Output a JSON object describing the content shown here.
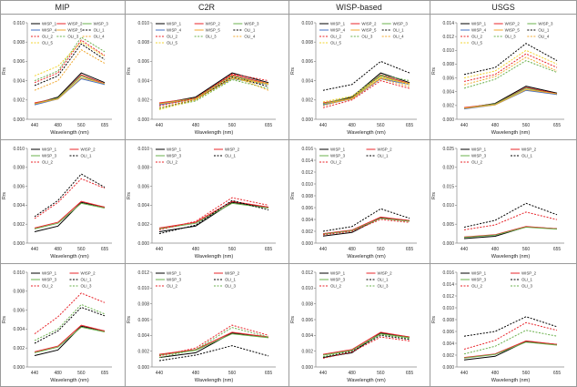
{
  "column_titles": [
    "MIP",
    "C2R",
    "WISP-based",
    "USGS"
  ],
  "colors": {
    "WISP_1": "#000000",
    "WISP_2": "#e8242a",
    "WISP_3": "#6ab04c",
    "WISP_4": "#4472c4",
    "WISP_5": "#f0a830",
    "OLI_1": "#000000",
    "OLI_2": "#e8242a",
    "OLI_3": "#6ab04c",
    "OLI_4": "#f0a830",
    "OLI_5": "#f2d430"
  },
  "chart_data": [
    {
      "type": "line",
      "row": 0,
      "col": 0,
      "xlabel": "Wavelength (nm)",
      "ylabel": "Rrs",
      "categories": [
        "440",
        "480",
        "560",
        "655"
      ],
      "ylim": [
        0,
        0.01
      ],
      "yticks": [
        "0.000",
        "0.002",
        "0.004",
        "0.006",
        "0.008",
        "0.010"
      ],
      "legend_cols": 3,
      "series": [
        {
          "name": "WISP_1",
          "values": [
            0.0016,
            0.0023,
            0.0048,
            0.0038
          ]
        },
        {
          "name": "WISP_2",
          "values": [
            0.0017,
            0.0022,
            0.0046,
            0.0037
          ]
        },
        {
          "name": "WISP_3",
          "values": [
            0.0016,
            0.0022,
            0.0045,
            0.0036
          ]
        },
        {
          "name": "WISP_4",
          "values": [
            0.0015,
            0.0021,
            0.0042,
            0.0036
          ]
        },
        {
          "name": "WISP_5",
          "values": [
            0.0016,
            0.0021,
            0.0043,
            0.0037
          ]
        },
        {
          "name": "OLI_1",
          "values": [
            0.0035,
            0.0045,
            0.0078,
            0.0062
          ]
        },
        {
          "name": "OLI_2",
          "values": [
            0.0038,
            0.0048,
            0.0082,
            0.0066
          ]
        },
        {
          "name": "OLI_3",
          "values": [
            0.004,
            0.005,
            0.0085,
            0.007
          ]
        },
        {
          "name": "OLI_4",
          "values": [
            0.003,
            0.004,
            0.0072,
            0.0058
          ]
        },
        {
          "name": "OLI_5",
          "values": [
            0.0045,
            0.0055,
            0.008,
            0.0065
          ]
        }
      ]
    },
    {
      "type": "line",
      "row": 0,
      "col": 1,
      "xlabel": "Wavelength (nm)",
      "ylabel": "Rrs",
      "categories": [
        "440",
        "480",
        "560",
        "655"
      ],
      "ylim": [
        0,
        0.01
      ],
      "yticks": [
        "0.000",
        "0.002",
        "0.004",
        "0.006",
        "0.008",
        "0.010"
      ],
      "legend_cols": 3,
      "series": [
        {
          "name": "WISP_1",
          "values": [
            0.0016,
            0.0023,
            0.0048,
            0.0038
          ]
        },
        {
          "name": "WISP_2",
          "values": [
            0.0017,
            0.0022,
            0.0046,
            0.0037
          ]
        },
        {
          "name": "WISP_3",
          "values": [
            0.0016,
            0.0022,
            0.0045,
            0.0036
          ]
        },
        {
          "name": "WISP_4",
          "values": [
            0.0015,
            0.0021,
            0.0042,
            0.0036
          ]
        },
        {
          "name": "WISP_5",
          "values": [
            0.0016,
            0.0021,
            0.0043,
            0.0037
          ]
        },
        {
          "name": "OLI_1",
          "values": [
            0.0012,
            0.002,
            0.0044,
            0.0034
          ]
        },
        {
          "name": "OLI_2",
          "values": [
            0.0014,
            0.0022,
            0.0047,
            0.004
          ]
        },
        {
          "name": "OLI_3",
          "values": [
            0.0011,
            0.0019,
            0.0041,
            0.0032
          ]
        },
        {
          "name": "OLI_4",
          "values": [
            0.0012,
            0.0021,
            0.0045,
            0.003
          ]
        },
        {
          "name": "OLI_5",
          "values": [
            0.001,
            0.002,
            0.0042,
            0.0036
          ]
        }
      ]
    },
    {
      "type": "line",
      "row": 0,
      "col": 2,
      "xlabel": "Wavelength (nm)",
      "ylabel": "Rrs",
      "categories": [
        "440",
        "480",
        "560",
        "655"
      ],
      "ylim": [
        0,
        0.01
      ],
      "yticks": [
        "0.000",
        "0.002",
        "0.004",
        "0.006",
        "0.008",
        "0.010"
      ],
      "legend_cols": 3,
      "series": [
        {
          "name": "WISP_1",
          "values": [
            0.0016,
            0.0023,
            0.0048,
            0.0038
          ]
        },
        {
          "name": "WISP_2",
          "values": [
            0.0017,
            0.0022,
            0.0046,
            0.0037
          ]
        },
        {
          "name": "WISP_3",
          "values": [
            0.0016,
            0.0022,
            0.0045,
            0.0036
          ]
        },
        {
          "name": "WISP_4",
          "values": [
            0.0015,
            0.0021,
            0.0042,
            0.0036
          ]
        },
        {
          "name": "WISP_5",
          "values": [
            0.0016,
            0.0021,
            0.0043,
            0.0037
          ]
        },
        {
          "name": "OLI_1",
          "values": [
            0.003,
            0.0036,
            0.006,
            0.0048
          ]
        },
        {
          "name": "OLI_2",
          "values": [
            0.0012,
            0.002,
            0.004,
            0.0032
          ]
        },
        {
          "name": "OLI_3",
          "values": [
            0.0016,
            0.0024,
            0.0046,
            0.004
          ]
        },
        {
          "name": "OLI_4",
          "values": [
            0.0014,
            0.0022,
            0.0042,
            0.0034
          ]
        },
        {
          "name": "OLI_5",
          "values": [
            0.0018,
            0.0024,
            0.0044,
            0.0036
          ]
        }
      ]
    },
    {
      "type": "line",
      "row": 0,
      "col": 3,
      "xlabel": "Wavelength (nm)",
      "ylabel": "Rrs",
      "categories": [
        "440",
        "480",
        "560",
        "655"
      ],
      "ylim": [
        0,
        0.014
      ],
      "yticks": [
        "0.000",
        "0.002",
        "0.004",
        "0.006",
        "0.008",
        "0.010",
        "0.012",
        "0.014"
      ],
      "legend_cols": 3,
      "series": [
        {
          "name": "WISP_1",
          "values": [
            0.0016,
            0.0023,
            0.0048,
            0.0038
          ]
        },
        {
          "name": "WISP_2",
          "values": [
            0.0017,
            0.0022,
            0.0046,
            0.0037
          ]
        },
        {
          "name": "WISP_3",
          "values": [
            0.0016,
            0.0022,
            0.0045,
            0.0036
          ]
        },
        {
          "name": "WISP_4",
          "values": [
            0.0015,
            0.0021,
            0.0042,
            0.0036
          ]
        },
        {
          "name": "WISP_5",
          "values": [
            0.0016,
            0.0021,
            0.0043,
            0.0037
          ]
        },
        {
          "name": "OLI_1",
          "values": [
            0.0065,
            0.0075,
            0.011,
            0.0085
          ]
        },
        {
          "name": "OLI_2",
          "values": [
            0.0055,
            0.0065,
            0.0095,
            0.0075
          ]
        },
        {
          "name": "OLI_3",
          "values": [
            0.0045,
            0.0058,
            0.0085,
            0.0068
          ]
        },
        {
          "name": "OLI_4",
          "values": [
            0.005,
            0.0062,
            0.009,
            0.007
          ]
        },
        {
          "name": "OLI_5",
          "values": [
            0.006,
            0.007,
            0.01,
            0.008
          ]
        }
      ]
    },
    {
      "type": "line",
      "row": 1,
      "col": 0,
      "xlabel": "Wavelength (nm)",
      "ylabel": "Rrs",
      "categories": [
        "440",
        "480",
        "560",
        "655"
      ],
      "ylim": [
        0,
        0.01
      ],
      "yticks": [
        "0.000",
        "0.002",
        "0.004",
        "0.006",
        "0.008",
        "0.010"
      ],
      "legend_cols": 2,
      "series": [
        {
          "name": "WISP_1",
          "values": [
            0.0012,
            0.0018,
            0.0043,
            0.0038
          ]
        },
        {
          "name": "WISP_2",
          "values": [
            0.0016,
            0.0022,
            0.0044,
            0.0038
          ]
        },
        {
          "name": "WISP_3",
          "values": [
            0.0015,
            0.0021,
            0.0042,
            0.0037
          ]
        },
        {
          "name": "OLI_1",
          "values": [
            0.0028,
            0.0045,
            0.0073,
            0.0059
          ]
        },
        {
          "name": "OLI_2",
          "values": [
            0.0026,
            0.0043,
            0.0068,
            0.0058
          ]
        }
      ]
    },
    {
      "type": "line",
      "row": 1,
      "col": 1,
      "xlabel": "Wavelength (nm)",
      "ylabel": "Rrs",
      "categories": [
        "440",
        "480",
        "560",
        "655"
      ],
      "ylim": [
        0,
        0.01
      ],
      "yticks": [
        "0.000",
        "0.002",
        "0.004",
        "0.006",
        "0.008",
        "0.010"
      ],
      "legend_cols": 2,
      "series": [
        {
          "name": "WISP_1",
          "values": [
            0.0012,
            0.0018,
            0.0043,
            0.0038
          ]
        },
        {
          "name": "WISP_2",
          "values": [
            0.0016,
            0.0022,
            0.0044,
            0.0038
          ]
        },
        {
          "name": "WISP_3",
          "values": [
            0.0015,
            0.0021,
            0.0042,
            0.0037
          ]
        },
        {
          "name": "OLI_1",
          "values": [
            0.001,
            0.0019,
            0.0045,
            0.0035
          ]
        },
        {
          "name": "OLI_2",
          "values": [
            0.0014,
            0.0023,
            0.0048,
            0.004
          ]
        }
      ]
    },
    {
      "type": "line",
      "row": 1,
      "col": 2,
      "xlabel": "Wavelength (nm)",
      "ylabel": "Rrs",
      "categories": [
        "440",
        "480",
        "560",
        "655"
      ],
      "ylim": [
        0,
        0.016
      ],
      "yticks": [
        "0.000",
        "0.002",
        "0.004",
        "0.006",
        "0.008",
        "0.010",
        "0.012",
        "0.014",
        "0.016"
      ],
      "legend_cols": 2,
      "series": [
        {
          "name": "WISP_1",
          "values": [
            0.0012,
            0.0018,
            0.0043,
            0.0038
          ]
        },
        {
          "name": "WISP_2",
          "values": [
            0.0016,
            0.0022,
            0.0044,
            0.0038
          ]
        },
        {
          "name": "WISP_3",
          "values": [
            0.0015,
            0.0021,
            0.0042,
            0.0037
          ]
        },
        {
          "name": "OLI_1",
          "values": [
            0.002,
            0.0028,
            0.0058,
            0.0042
          ]
        },
        {
          "name": "OLI_2",
          "values": [
            0.0014,
            0.002,
            0.004,
            0.0035
          ]
        }
      ]
    },
    {
      "type": "line",
      "row": 1,
      "col": 3,
      "xlabel": "Wavelength (nm)",
      "ylabel": "Rrs",
      "categories": [
        "440",
        "480",
        "560",
        "655"
      ],
      "ylim": [
        0,
        0.025
      ],
      "yticks": [
        "0.000",
        "0.005",
        "0.010",
        "0.015",
        "0.020",
        "0.025"
      ],
      "legend_cols": 2,
      "series": [
        {
          "name": "WISP_1",
          "values": [
            0.0012,
            0.0018,
            0.0043,
            0.0038
          ]
        },
        {
          "name": "WISP_2",
          "values": [
            0.0016,
            0.0022,
            0.0044,
            0.0038
          ]
        },
        {
          "name": "WISP_3",
          "values": [
            0.0015,
            0.0021,
            0.0042,
            0.0037
          ]
        },
        {
          "name": "OLI_1",
          "values": [
            0.0042,
            0.006,
            0.0105,
            0.0075
          ]
        },
        {
          "name": "OLI_2",
          "values": [
            0.0035,
            0.0048,
            0.0082,
            0.0062
          ]
        }
      ]
    },
    {
      "type": "line",
      "row": 2,
      "col": 0,
      "xlabel": "Wavelength (nm)",
      "ylabel": "Rrs",
      "categories": [
        "440",
        "480",
        "560",
        "655"
      ],
      "ylim": [
        0,
        0.01
      ],
      "yticks": [
        "0.000",
        "0.002",
        "0.004",
        "0.006",
        "0.008",
        "0.010"
      ],
      "legend_cols": 2,
      "series": [
        {
          "name": "WISP_1",
          "values": [
            0.0012,
            0.0018,
            0.0043,
            0.0038
          ]
        },
        {
          "name": "WISP_2",
          "values": [
            0.0016,
            0.0022,
            0.0044,
            0.0038
          ]
        },
        {
          "name": "WISP_3",
          "values": [
            0.0015,
            0.0021,
            0.0042,
            0.0037
          ]
        },
        {
          "name": "OLI_1",
          "values": [
            0.0025,
            0.0038,
            0.0063,
            0.0054
          ]
        },
        {
          "name": "OLI_2",
          "values": [
            0.0035,
            0.0053,
            0.0078,
            0.0068
          ]
        },
        {
          "name": "OLI_3",
          "values": [
            0.0028,
            0.004,
            0.0066,
            0.0056
          ]
        }
      ]
    },
    {
      "type": "line",
      "row": 2,
      "col": 1,
      "xlabel": "Wavelength (nm)",
      "ylabel": "Rrs",
      "categories": [
        "440",
        "480",
        "560",
        "655"
      ],
      "ylim": [
        0,
        0.012
      ],
      "yticks": [
        "0.000",
        "0.002",
        "0.004",
        "0.006",
        "0.008",
        "0.010",
        "0.012"
      ],
      "legend_cols": 2,
      "series": [
        {
          "name": "WISP_1",
          "values": [
            0.0012,
            0.0018,
            0.0043,
            0.0038
          ]
        },
        {
          "name": "WISP_2",
          "values": [
            0.0016,
            0.0022,
            0.0044,
            0.0038
          ]
        },
        {
          "name": "WISP_3",
          "values": [
            0.0015,
            0.0021,
            0.0042,
            0.0037
          ]
        },
        {
          "name": "OLI_1",
          "values": [
            0.0008,
            0.0015,
            0.0027,
            0.0014
          ]
        },
        {
          "name": "OLI_2",
          "values": [
            0.0014,
            0.0024,
            0.0053,
            0.004
          ]
        },
        {
          "name": "OLI_3",
          "values": [
            0.0012,
            0.0022,
            0.005,
            0.0038
          ]
        }
      ]
    },
    {
      "type": "line",
      "row": 2,
      "col": 2,
      "xlabel": "Wavelength (nm)",
      "ylabel": "Rrs",
      "categories": [
        "440",
        "480",
        "560",
        "655"
      ],
      "ylim": [
        0,
        0.012
      ],
      "yticks": [
        "0.000",
        "0.002",
        "0.004",
        "0.006",
        "0.008",
        "0.010",
        "0.012"
      ],
      "legend_cols": 2,
      "series": [
        {
          "name": "WISP_1",
          "values": [
            0.0012,
            0.0018,
            0.0043,
            0.0038
          ]
        },
        {
          "name": "WISP_2",
          "values": [
            0.0016,
            0.0022,
            0.0044,
            0.0038
          ]
        },
        {
          "name": "WISP_3",
          "values": [
            0.0015,
            0.0021,
            0.0042,
            0.0037
          ]
        },
        {
          "name": "OLI_1",
          "values": [
            0.0012,
            0.002,
            0.004,
            0.0035
          ]
        },
        {
          "name": "OLI_2",
          "values": [
            0.0011,
            0.0019,
            0.0038,
            0.0033
          ]
        },
        {
          "name": "OLI_3",
          "values": [
            0.0013,
            0.0021,
            0.0041,
            0.0036
          ]
        }
      ]
    },
    {
      "type": "line",
      "row": 2,
      "col": 3,
      "xlabel": "Wavelength (nm)",
      "ylabel": "Rrs",
      "categories": [
        "440",
        "480",
        "560",
        "655"
      ],
      "ylim": [
        0,
        0.016
      ],
      "yticks": [
        "0.000",
        "0.002",
        "0.004",
        "0.006",
        "0.008",
        "0.010",
        "0.012",
        "0.014",
        "0.016"
      ],
      "legend_cols": 2,
      "series": [
        {
          "name": "WISP_1",
          "values": [
            0.0012,
            0.0018,
            0.0043,
            0.0038
          ]
        },
        {
          "name": "WISP_2",
          "values": [
            0.0016,
            0.0022,
            0.0044,
            0.0038
          ]
        },
        {
          "name": "WISP_3",
          "values": [
            0.0015,
            0.0021,
            0.0042,
            0.0037
          ]
        },
        {
          "name": "OLI_1",
          "values": [
            0.0052,
            0.006,
            0.0085,
            0.0068
          ]
        },
        {
          "name": "OLI_2",
          "values": [
            0.003,
            0.0045,
            0.0075,
            0.0062
          ]
        },
        {
          "name": "OLI_3",
          "values": [
            0.0022,
            0.0035,
            0.0062,
            0.0052
          ]
        }
      ]
    }
  ]
}
